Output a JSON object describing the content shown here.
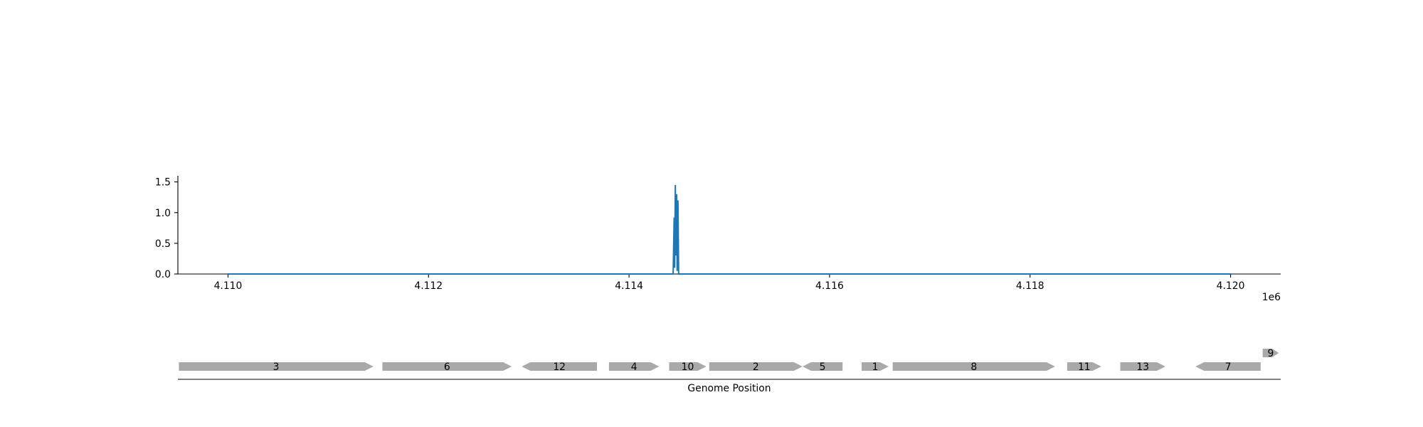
{
  "chart_data": {
    "type": "line",
    "signal_plot": {
      "x_range": [
        4109500,
        4120500
      ],
      "y_range": [
        0,
        1.6
      ],
      "x_ticks": [
        4110000,
        4112000,
        4114000,
        4116000,
        4118000,
        4120000
      ],
      "x_tick_labels": [
        "4.110",
        "4.112",
        "4.114",
        "4.116",
        "4.118",
        "4.120"
      ],
      "x_offset_label": "1e6",
      "y_ticks": [
        0.0,
        0.5,
        1.0,
        1.5
      ],
      "y_tick_labels": [
        "0.0",
        "0.5",
        "1.0",
        "1.5"
      ],
      "series_color": "#1f77b4",
      "series": [
        {
          "x": [
            4110000,
            4114440,
            4114450,
            4114455,
            4114462,
            4114468,
            4114475,
            4114480,
            4114488,
            4114495,
            4114500,
            4114510,
            4120000
          ],
          "y": [
            0.0,
            0.0,
            0.92,
            0.1,
            1.45,
            0.3,
            1.3,
            0.05,
            1.2,
            0.0,
            0.0,
            0.0,
            0.0
          ]
        }
      ]
    },
    "gene_track": {
      "x_range": [
        4109500,
        4120500
      ],
      "xlabel": "Genome Position",
      "gene_color": "#a9a9a9",
      "genes": [
        {
          "label": "3",
          "start": 4109510,
          "end": 4111450,
          "strand": "+",
          "row": 0
        },
        {
          "label": "6",
          "start": 4111540,
          "end": 4112830,
          "strand": "+",
          "row": 0
        },
        {
          "label": "12",
          "start": 4112930,
          "end": 4113680,
          "strand": "-",
          "row": 0
        },
        {
          "label": "4",
          "start": 4113800,
          "end": 4114300,
          "strand": "+",
          "row": 0
        },
        {
          "label": "10",
          "start": 4114400,
          "end": 4114770,
          "strand": "+",
          "row": 0
        },
        {
          "label": "2",
          "start": 4114800,
          "end": 4115730,
          "strand": "+",
          "row": 0
        },
        {
          "label": "5",
          "start": 4115730,
          "end": 4116130,
          "strand": "-",
          "row": 0
        },
        {
          "label": "1",
          "start": 4116320,
          "end": 4116590,
          "strand": "+",
          "row": 0
        },
        {
          "label": "8",
          "start": 4116630,
          "end": 4118250,
          "strand": "+",
          "row": 0
        },
        {
          "label": "11",
          "start": 4118370,
          "end": 4118710,
          "strand": "+",
          "row": 0
        },
        {
          "label": "13",
          "start": 4118900,
          "end": 4119350,
          "strand": "+",
          "row": 0
        },
        {
          "label": "7",
          "start": 4119650,
          "end": 4120300,
          "strand": "-",
          "row": 0
        },
        {
          "label": "9",
          "start": 4120320,
          "end": 4120480,
          "strand": "+",
          "row": 1
        }
      ]
    }
  }
}
